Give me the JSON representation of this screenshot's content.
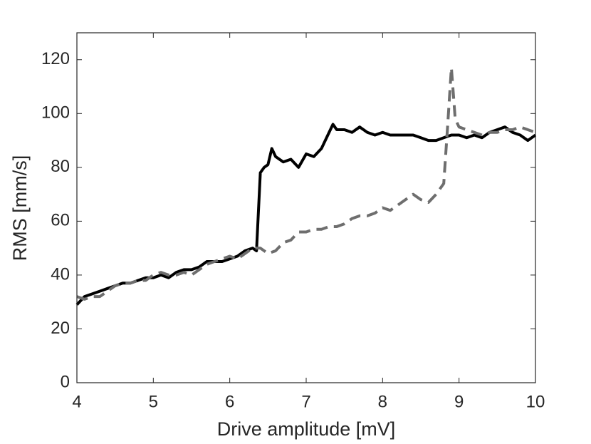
{
  "chart_data": {
    "type": "line",
    "xlabel": "Drive amplitude [mV]",
    "ylabel": "RMS [mm/s]",
    "xlim": [
      4,
      10
    ],
    "xticks": [
      4,
      5,
      6,
      7,
      8,
      9,
      10
    ],
    "ylim": [
      0,
      130
    ],
    "yticks": [
      0,
      20,
      40,
      60,
      80,
      100,
      120
    ],
    "grid": false,
    "series": [
      {
        "color": "#000000",
        "linestyle": "solid",
        "x": [
          4.0,
          4.1,
          4.2,
          4.3,
          4.4,
          4.5,
          4.6,
          4.7,
          4.8,
          4.9,
          5.0,
          5.1,
          5.2,
          5.3,
          5.4,
          5.5,
          5.6,
          5.7,
          5.8,
          5.9,
          6.0,
          6.1,
          6.2,
          6.3,
          6.35,
          6.4,
          6.45,
          6.5,
          6.55,
          6.6,
          6.7,
          6.8,
          6.9,
          7.0,
          7.1,
          7.2,
          7.3,
          7.35,
          7.4,
          7.5,
          7.6,
          7.7,
          7.8,
          7.9,
          8.0,
          8.1,
          8.2,
          8.3,
          8.4,
          8.5,
          8.6,
          8.7,
          8.8,
          8.9,
          9.0,
          9.1,
          9.2,
          9.3,
          9.4,
          9.5,
          9.6,
          9.7,
          9.8,
          9.9,
          10.0
        ],
        "values": [
          29,
          32,
          33,
          34,
          35,
          36,
          37,
          37,
          38,
          39,
          39,
          40,
          39,
          41,
          42,
          42,
          43,
          45,
          45,
          45,
          46,
          47,
          49,
          50,
          49,
          78,
          80,
          81,
          87,
          84,
          82,
          83,
          80,
          85,
          84,
          87,
          93,
          96,
          94,
          94,
          93,
          95,
          93,
          92,
          93,
          92,
          92,
          92,
          92,
          91,
          90,
          90,
          91,
          92,
          92,
          91,
          92,
          91,
          93,
          94,
          95,
          93,
          92,
          90,
          92
        ]
      },
      {
        "color": "#6e6e6e",
        "linestyle": "dashed",
        "x": [
          4.0,
          4.1,
          4.2,
          4.3,
          4.4,
          4.5,
          4.6,
          4.7,
          4.8,
          4.9,
          5.0,
          5.1,
          5.2,
          5.3,
          5.4,
          5.5,
          5.6,
          5.7,
          5.8,
          5.9,
          6.0,
          6.1,
          6.2,
          6.3,
          6.4,
          6.5,
          6.6,
          6.7,
          6.8,
          6.9,
          7.0,
          7.1,
          7.2,
          7.3,
          7.4,
          7.5,
          7.6,
          7.7,
          7.8,
          7.9,
          8.0,
          8.1,
          8.2,
          8.3,
          8.4,
          8.5,
          8.6,
          8.7,
          8.8,
          8.85,
          8.9,
          8.95,
          9.0,
          9.1,
          9.2,
          9.3,
          9.4,
          9.5,
          9.6,
          9.7,
          9.8,
          9.9,
          10.0
        ],
        "values": [
          32,
          31,
          32,
          32,
          34,
          36,
          37,
          37,
          38,
          38,
          40,
          41,
          40,
          40,
          41,
          40,
          42,
          44,
          45,
          46,
          47,
          46,
          48,
          50,
          50,
          48,
          49,
          52,
          53,
          56,
          56,
          57,
          57,
          58,
          58,
          59,
          61,
          62,
          62,
          63,
          65,
          64,
          66,
          68,
          70,
          68,
          67,
          70,
          74,
          95,
          117,
          98,
          95,
          94,
          93,
          92,
          93,
          93,
          94,
          94,
          95,
          94,
          93
        ]
      }
    ]
  }
}
